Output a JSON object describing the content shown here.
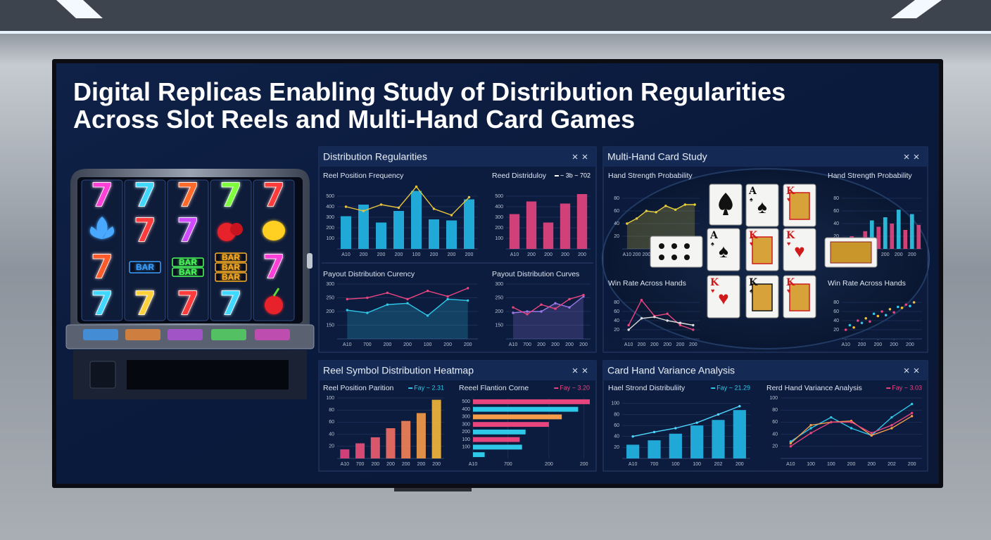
{
  "title_lines": [
    "Digital Replicas Enabling Study of Distribution Regularities",
    "Across Slot Reels and Multi-Hand Card Games"
  ],
  "slot": {
    "reels": [
      [
        {
          "text": "7",
          "color": "#ff3fd8"
        },
        {
          "text": "7",
          "color": "#3fd8ff"
        },
        {
          "text": "7",
          "color": "#ff6a2a"
        },
        {
          "text": "7",
          "color": "#7dff3a"
        },
        {
          "text": "7",
          "color": "#ff3a3a"
        }
      ],
      [
        null,
        {
          "text": "7",
          "color": "#ff3a3a"
        },
        {
          "text": "7",
          "color": "#d04bff"
        },
        null,
        null
      ],
      [
        {
          "text": "7",
          "color": "#ff5a2a"
        },
        {
          "text": [
            "BAR"
          ],
          "color": "#3aa0ff"
        },
        {
          "text": [
            "BAR",
            "BAR"
          ],
          "color": "#4cff5a"
        },
        {
          "text": [
            "BAR",
            "BAR",
            "BAR"
          ],
          "color": "#ffb020"
        },
        {
          "text": "7",
          "color": "#ff3fd8"
        }
      ],
      [
        {
          "text": "7",
          "color": "#3fd8ff"
        },
        {
          "text": "7",
          "color": "#ffd23a"
        },
        {
          "text": "7",
          "color": "#ff3a3a"
        },
        {
          "text": "7",
          "color": "#3fd8ff"
        },
        null
      ]
    ]
  },
  "cards": [
    {
      "rank": "A",
      "suit": "♠"
    },
    {
      "rank": "K",
      "suit": "♥"
    },
    {
      "rank": "A",
      "suit": "♠"
    },
    {
      "rank": "K",
      "suit": "♥"
    },
    {
      "rank": "K",
      "suit": "♥"
    },
    {
      "rank": "K",
      "suit": "♥"
    },
    {
      "rank": "K",
      "suit": "♠"
    },
    {
      "rank": "K",
      "suit": "♥"
    }
  ],
  "panels": [
    {
      "title": "Distribution Regularities",
      "charts": [
        {
          "type": "combo",
          "title": "Reel Position Frequency",
          "categories": [
            "A10",
            "200",
            "200",
            "200",
            "100",
            "200",
            "200",
            "200"
          ],
          "ylim": [
            0,
            600
          ],
          "yticks": [
            100,
            200,
            300,
            400,
            500
          ],
          "series": [
            {
              "type": "bar",
              "color": "#22b8e8",
              "values": [
                310,
                420,
                250,
                360,
                550,
                280,
                270,
                470
              ]
            },
            {
              "type": "line",
              "color": "#e8c43a",
              "values": [
                400,
                360,
                420,
                390,
                590,
                380,
                320,
                490
              ]
            }
          ]
        },
        {
          "type": "combo",
          "title": "Reed Distriduloy",
          "legend": "~ 3b ~ 702",
          "legend_color": "#ffffff",
          "categories": [
            "A10",
            "200",
            "200",
            "200",
            "200"
          ],
          "ylim": [
            0,
            600
          ],
          "yticks": [
            100,
            200,
            300,
            400,
            500
          ],
          "series": [
            {
              "type": "bar",
              "color": "#e8457f",
              "values": [
                330,
                450,
                250,
                430,
                520
              ]
            }
          ]
        },
        {
          "type": "combo",
          "title": "Payout Distribution Curency",
          "categories": [
            "A10",
            "700",
            "200",
            "200",
            "100",
            "200",
            "200"
          ],
          "ylim": [
            100,
            300
          ],
          "yticks": [
            150,
            200,
            250,
            300
          ],
          "series": [
            {
              "type": "area",
              "color": "#2ec8e8",
              "values": [
                205,
                195,
                225,
                230,
                185,
                245,
                240
              ]
            },
            {
              "type": "line",
              "color": "#e8457f",
              "values": [
                245,
                250,
                268,
                245,
                275,
                255,
                285
              ]
            }
          ]
        },
        {
          "type": "combo",
          "title": "Payout Distribution Curves",
          "categories": [
            "A10",
            "700",
            "200",
            "200",
            "200",
            "200"
          ],
          "ylim": [
            100,
            300
          ],
          "yticks": [
            150,
            200,
            250,
            300
          ],
          "series": [
            {
              "type": "area",
              "color": "#9b7ae8",
              "values": [
                195,
                200,
                200,
                230,
                215,
                255
              ]
            },
            {
              "type": "line",
              "color": "#e8457f",
              "values": [
                215,
                190,
                225,
                210,
                245,
                260
              ]
            }
          ]
        }
      ]
    },
    {
      "title": "Multi-Hand Card Study",
      "charts": [
        {
          "type": "combo",
          "title": "Hand Strength Probability",
          "categories": [
            "A10",
            "200",
            "200",
            "200",
            "200",
            "200",
            "200",
            "200"
          ],
          "ylim": [
            0,
            100
          ],
          "yticks": [
            20,
            40,
            60,
            80
          ],
          "series": [
            {
              "type": "area",
              "color": "#e8d03a",
              "values": [
                40,
                48,
                60,
                58,
                68,
                62,
                70,
                70
              ]
            }
          ]
        },
        {
          "type": "combo",
          "title": "Hand Strength Probability",
          "categories": [
            "A10",
            null,
            "200",
            null,
            "200",
            null,
            "200",
            null,
            "200",
            null,
            "200",
            null
          ],
          "ylim": [
            0,
            100
          ],
          "yticks": [
            20,
            40,
            60,
            80
          ],
          "series": [
            {
              "type": "bar",
              "colors": [
                "#2ec8e8",
                "#e8457f",
                "#2ec8e8",
                "#e8457f",
                "#2ec8e8",
                "#e8457f",
                "#2ec8e8",
                "#e8457f",
                "#2ec8e8",
                "#e8457f",
                "#2ec8e8",
                "#e8457f"
              ],
              "values": [
                15,
                20,
                12,
                28,
                45,
                35,
                50,
                40,
                62,
                30,
                55,
                38
              ]
            }
          ]
        },
        {
          "type": "combo",
          "title": "Win Rate Across Hands",
          "categories": [
            "A10",
            "200",
            "200",
            "200",
            "200",
            "200"
          ],
          "ylim": [
            0,
            100
          ],
          "yticks": [
            20,
            40,
            60,
            80
          ],
          "series": [
            {
              "type": "line",
              "color": "#e8457f",
              "values": [
                30,
                85,
                50,
                55,
                30,
                20
              ]
            },
            {
              "type": "line",
              "color": "#dddddd",
              "values": [
                20,
                45,
                48,
                40,
                35,
                30
              ]
            }
          ]
        },
        {
          "type": "scatter",
          "title": "Win Rate Across Hands",
          "xlim": [
            0,
            20
          ],
          "xticks": [
            {
              "value": 1,
              "label": "A10"
            },
            {
              "value": 5,
              "label": "200"
            },
            {
              "value": 9,
              "label": "200"
            },
            {
              "value": 13,
              "label": "200"
            },
            {
              "value": 17,
              "label": "200"
            }
          ],
          "ylim": [
            0,
            100
          ],
          "yticks": [
            20,
            40,
            60,
            80
          ],
          "x": [
            1,
            2,
            3,
            4,
            5,
            6,
            7,
            8,
            9,
            10,
            11,
            12,
            13,
            14,
            15,
            16,
            17,
            18
          ],
          "values": [
            20,
            30,
            25,
            40,
            35,
            45,
            38,
            55,
            50,
            60,
            52,
            65,
            58,
            70,
            68,
            75,
            72,
            80
          ],
          "colors": [
            "#e8457f",
            "#2ec8e8",
            "#f0c030"
          ]
        }
      ]
    },
    {
      "title": "Reel Symbol Distribution Heatmap",
      "charts": [
        {
          "type": "combo",
          "title": "Reel Position Parition",
          "legend": "Fay ~ 2.31",
          "legend_color": "#2ec8e8",
          "categories": [
            "A10",
            "700",
            "200",
            "200",
            "200",
            "200",
            "200"
          ],
          "ylim": [
            0,
            100
          ],
          "yticks": [
            20,
            40,
            60,
            80,
            100
          ],
          "series": [
            {
              "type": "bar",
              "colors": [
                "#e8457f",
                "#ec4f78",
                "#ef5e70",
                "#f27064",
                "#f48558",
                "#f59d4a",
                "#f5b93a"
              ],
              "values": [
                15,
                25,
                35,
                50,
                62,
                75,
                97
              ]
            }
          ]
        },
        {
          "type": "hbar",
          "title": "Reeel Flantion Corne",
          "legend": "Fay ~ 3.20",
          "legend_color": "#e8457f",
          "categories": [
            "500",
            "400",
            "300",
            "300",
            "200",
            "100",
            "100",
            null
          ],
          "xlim": [
            0,
            100
          ],
          "xticks": [
            {
              "value": 0,
              "label": "A10"
            },
            {
              "value": 30,
              "label": "700"
            },
            {
              "value": 65,
              "label": "200"
            },
            {
              "value": 95,
              "label": "200"
            }
          ],
          "values": [
            100,
            90,
            76,
            65,
            45,
            40,
            42,
            10
          ],
          "colors": [
            "#e8457f",
            "#2ec8e8",
            "#f59d4a",
            "#e8457f",
            "#2ec8e8",
            "#e8457f",
            "#2ec8e8",
            "#2ec8e8"
          ]
        }
      ]
    },
    {
      "title": "Card Hand Variance Analysis",
      "charts": [
        {
          "type": "combo",
          "title": "Hael Strond Distribuliity",
          "legend": "Fay ~ 21.29",
          "legend_color": "#2ec8e8",
          "categories": [
            "A10",
            "700",
            "100",
            "100",
            "202",
            "200"
          ],
          "ylim": [
            0,
            110
          ],
          "yticks": [
            20,
            40,
            60,
            80,
            100
          ],
          "series": [
            {
              "type": "bar",
              "color": "#22b8e8",
              "values": [
                25,
                33,
                45,
                60,
                70,
                88
              ]
            },
            {
              "type": "line",
              "color": "#4fd8ff",
              "values": [
                40,
                48,
                55,
                65,
                80,
                95
              ]
            }
          ]
        },
        {
          "type": "combo",
          "title": "Rerd Hand Variance Analysis",
          "legend": "Fay ~ 3.03",
          "legend_color": "#e8457f",
          "categories": [
            "A10",
            "100",
            "100",
            "200",
            "200",
            "202",
            "200"
          ],
          "ylim": [
            0,
            100
          ],
          "yticks": [
            20,
            40,
            60,
            80,
            100
          ],
          "series": [
            {
              "type": "line",
              "color": "#2ec8e8",
              "values": [
                28,
                50,
                68,
                50,
                38,
                68,
                90
              ]
            },
            {
              "type": "line",
              "color": "#f59d4a",
              "values": [
                25,
                55,
                60,
                62,
                38,
                50,
                70
              ]
            },
            {
              "type": "line",
              "color": "#e8457f",
              "values": [
                20,
                42,
                60,
                60,
                42,
                55,
                75
              ]
            }
          ]
        }
      ]
    }
  ]
}
